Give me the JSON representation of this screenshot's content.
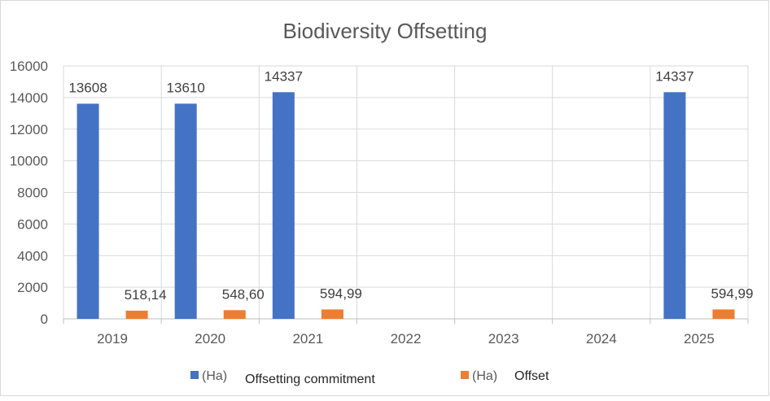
{
  "chart_data": {
    "type": "bar",
    "title": "Biodiversity Offsetting",
    "categories": [
      "2019",
      "2020",
      "2021",
      "2022",
      "2023",
      "2024",
      "2025"
    ],
    "ylim": [
      0,
      16000
    ],
    "yticks": [
      0,
      2000,
      4000,
      6000,
      8000,
      10000,
      12000,
      14000,
      16000
    ],
    "grid": true,
    "legend_position": "bottom",
    "series": [
      {
        "legend_unit": "(Ha)",
        "legend_text": "Offsetting commitment",
        "color": "#4472c4",
        "values": [
          13608,
          13610,
          14337,
          null,
          null,
          null,
          14337
        ],
        "labels": [
          "13608",
          "13610",
          "14337",
          "",
          "",
          "",
          "14337"
        ]
      },
      {
        "legend_unit": "(Ha)",
        "legend_text": "Offset",
        "color": "#ed7d31",
        "values": [
          518.14,
          548.6,
          594.99,
          null,
          null,
          null,
          594.99
        ],
        "labels": [
          "518,14",
          "548,60",
          "594,99",
          "",
          "",
          "",
          "594,99"
        ]
      }
    ]
  }
}
